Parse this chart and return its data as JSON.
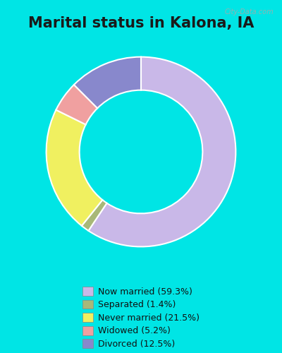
{
  "title": "Marital status in Kalona, IA",
  "title_fontsize": 15,
  "title_fontweight": "bold",
  "bg_outer": "#00e5e5",
  "bg_inner": "#d6f0d6",
  "categories": [
    "Now married",
    "Separated",
    "Never married",
    "Widowed",
    "Divorced"
  ],
  "values": [
    59.3,
    1.4,
    21.5,
    5.2,
    12.5
  ],
  "colors": [
    "#c9b8e8",
    "#a8b878",
    "#f0f060",
    "#f0a0a0",
    "#8888cc"
  ],
  "legend_labels": [
    "Now married (59.3%)",
    "Separated (1.4%)",
    "Never married (21.5%)",
    "Widowed (5.2%)",
    "Divorced (12.5%)"
  ],
  "watermark": "City-Data.com",
  "donut_width": 0.35,
  "start_angle": 90
}
